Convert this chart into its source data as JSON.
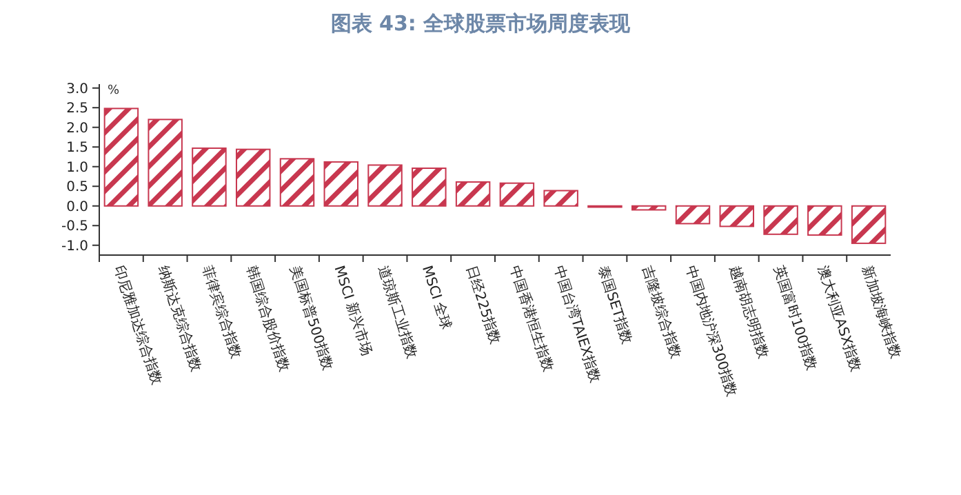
{
  "chart_data": {
    "type": "bar",
    "title": "图表 43: 全球股票市场周度表现",
    "ylabel": "%",
    "categories": [
      "印尼雅加达综合指数",
      "纳斯达克综合指数",
      "菲律宾综合指数",
      "韩国综合股价指数",
      "美国标普500指数",
      "MSCI 新兴市场",
      "道琼斯工业指数",
      "MSCI 全球",
      "日经225指数",
      "中国香港恒生指数",
      "中国台湾TAIEX指数",
      "泰国SET指数",
      "吉隆坡综合指数",
      "中国内地沪深300指数",
      "越南胡志明指数",
      "英国富时100指数",
      "澳大利亚ASX指数",
      "新加坡海峡指数"
    ],
    "values": [
      2.48,
      2.2,
      1.47,
      1.44,
      1.2,
      1.12,
      1.04,
      0.96,
      0.61,
      0.58,
      0.39,
      -0.03,
      -0.1,
      -0.45,
      -0.52,
      -0.72,
      -0.74,
      -0.95
    ],
    "color": "#c8374f",
    "ylim": [
      -1.25,
      3.1
    ],
    "yticks": [
      {
        "value": -1,
        "label": "-1.0"
      },
      {
        "value": -0.5,
        "label": "-0.5"
      },
      {
        "value": 0,
        "label": "0.0"
      },
      {
        "value": 0.5,
        "label": "0.5"
      },
      {
        "value": 1,
        "label": "1.0"
      },
      {
        "value": 1.5,
        "label": "1.5"
      },
      {
        "value": 2,
        "label": "2.0"
      },
      {
        "value": 2.5,
        "label": "2.5"
      },
      {
        "value": 3,
        "label": "3.0"
      }
    ]
  }
}
